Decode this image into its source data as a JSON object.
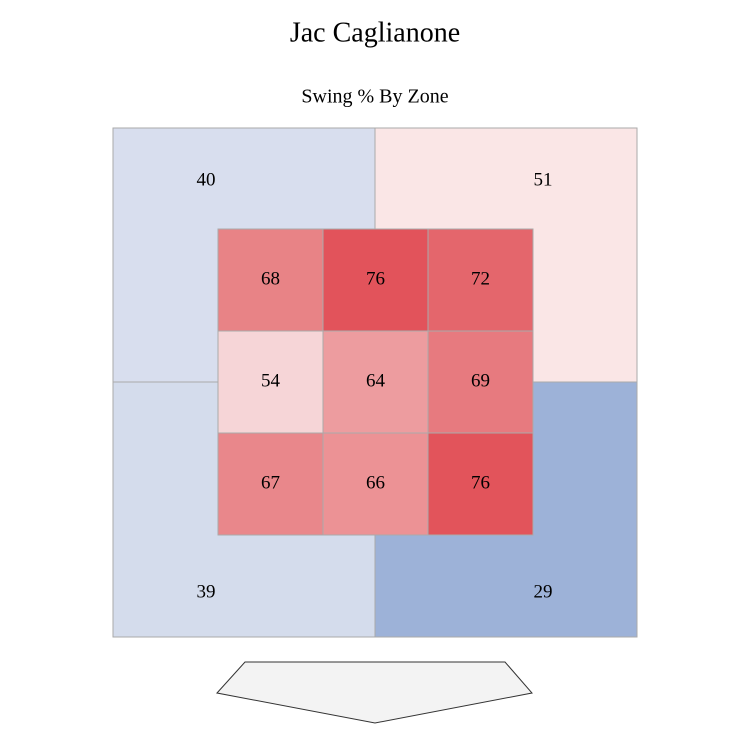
{
  "chart_data": {
    "type": "zone",
    "title": "Jac Caglianone",
    "subtitle": "Swing % By Zone",
    "outer": {
      "values": [
        40,
        51,
        39,
        29
      ],
      "colors": [
        "#d8deee",
        "#fae6e6",
        "#d4dcec",
        "#9db2d8"
      ]
    },
    "inner": {
      "values": [
        [
          68,
          76,
          72
        ],
        [
          54,
          64,
          69
        ],
        [
          67,
          66,
          76
        ]
      ],
      "colors": [
        [
          "#e88386",
          "#e2535b",
          "#e4666c"
        ],
        [
          "#f6d5d7",
          "#ed9c9f",
          "#e77a7f"
        ],
        [
          "#e9878b",
          "#ec9295",
          "#e2545b"
        ]
      ]
    }
  }
}
